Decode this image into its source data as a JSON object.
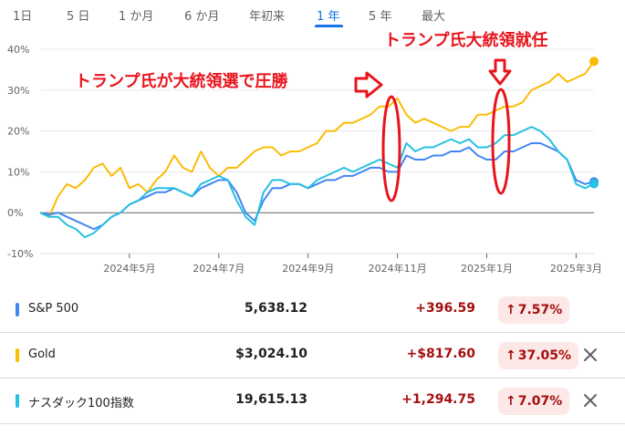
{
  "tabs": [
    "1日",
    "5 日",
    "1 か月",
    "6 か月",
    "年初来",
    "1 年",
    "5 年",
    "最大"
  ],
  "active_tab": "1 年",
  "annotations": {
    "election": "トランプ氏が大統領選で圧勝",
    "inauguration": "トランプ氏大統領就任"
  },
  "colors": {
    "sp500": "#4285f4",
    "gold": "#fbbc04",
    "nasdaq": "#24c1e0",
    "annotation": "#e8141c",
    "positive": "#a50e0e"
  },
  "chart_data": {
    "type": "line",
    "title": "",
    "xlabel": "",
    "ylabel": "",
    "x_ticks": [
      "2024年5月",
      "2024年7月",
      "2024年9月",
      "2024年11月",
      "2025年1月",
      "2025年3月"
    ],
    "x_tick_pos": [
      2.0,
      4.0,
      6.0,
      8.0,
      10.0,
      12.0
    ],
    "y_ticks": [
      "40%",
      "30%",
      "20%",
      "10%",
      "0%",
      "-10%"
    ],
    "y_tick_values": [
      40,
      30,
      20,
      10,
      0,
      -10
    ],
    "xlim": [
      0,
      12.4
    ],
    "ylim": [
      -10,
      40
    ],
    "grid": true,
    "series": [
      {
        "name": "Gold",
        "color": "gold",
        "points": [
          [
            0,
            0
          ],
          [
            0.2,
            -1
          ],
          [
            0.4,
            4
          ],
          [
            0.6,
            7
          ],
          [
            0.8,
            6
          ],
          [
            1.0,
            8
          ],
          [
            1.2,
            11
          ],
          [
            1.4,
            12
          ],
          [
            1.6,
            9
          ],
          [
            1.8,
            11
          ],
          [
            2.0,
            6
          ],
          [
            2.2,
            7
          ],
          [
            2.4,
            5
          ],
          [
            2.6,
            8
          ],
          [
            2.8,
            10
          ],
          [
            3.0,
            14
          ],
          [
            3.2,
            11
          ],
          [
            3.4,
            10
          ],
          [
            3.6,
            15
          ],
          [
            3.8,
            11
          ],
          [
            4.0,
            9
          ],
          [
            4.2,
            11
          ],
          [
            4.4,
            11
          ],
          [
            4.6,
            13
          ],
          [
            4.8,
            15
          ],
          [
            5.0,
            16
          ],
          [
            5.2,
            16
          ],
          [
            5.4,
            14
          ],
          [
            5.6,
            15
          ],
          [
            5.8,
            15
          ],
          [
            6.0,
            16
          ],
          [
            6.2,
            17
          ],
          [
            6.4,
            20
          ],
          [
            6.6,
            20
          ],
          [
            6.8,
            22
          ],
          [
            7.0,
            22
          ],
          [
            7.2,
            23
          ],
          [
            7.4,
            24
          ],
          [
            7.6,
            26
          ],
          [
            7.8,
            26
          ],
          [
            8.0,
            28
          ],
          [
            8.2,
            24
          ],
          [
            8.4,
            22
          ],
          [
            8.6,
            23
          ],
          [
            8.8,
            22
          ],
          [
            9.0,
            21
          ],
          [
            9.2,
            20
          ],
          [
            9.4,
            21
          ],
          [
            9.6,
            21
          ],
          [
            9.8,
            24
          ],
          [
            10.0,
            24
          ],
          [
            10.2,
            25
          ],
          [
            10.4,
            26
          ],
          [
            10.6,
            26
          ],
          [
            10.8,
            27
          ],
          [
            11.0,
            30
          ],
          [
            11.2,
            31
          ],
          [
            11.4,
            32
          ],
          [
            11.6,
            34
          ],
          [
            11.8,
            32
          ],
          [
            12.0,
            33
          ],
          [
            12.2,
            34
          ],
          [
            12.4,
            37.05
          ]
        ]
      },
      {
        "name": "S&P 500",
        "color": "sp500",
        "points": [
          [
            0,
            0
          ],
          [
            0.2,
            -0.5
          ],
          [
            0.4,
            0
          ],
          [
            0.6,
            -1
          ],
          [
            0.8,
            -2
          ],
          [
            1.0,
            -3
          ],
          [
            1.2,
            -4
          ],
          [
            1.4,
            -3
          ],
          [
            1.6,
            -1
          ],
          [
            1.8,
            0
          ],
          [
            2.0,
            2
          ],
          [
            2.2,
            3
          ],
          [
            2.4,
            4
          ],
          [
            2.6,
            5
          ],
          [
            2.8,
            5
          ],
          [
            3.0,
            6
          ],
          [
            3.2,
            5
          ],
          [
            3.4,
            4
          ],
          [
            3.6,
            6
          ],
          [
            3.8,
            7
          ],
          [
            4.0,
            8
          ],
          [
            4.2,
            8
          ],
          [
            4.4,
            5
          ],
          [
            4.6,
            0
          ],
          [
            4.8,
            -2
          ],
          [
            5.0,
            3
          ],
          [
            5.2,
            6
          ],
          [
            5.4,
            6
          ],
          [
            5.6,
            7
          ],
          [
            5.8,
            7
          ],
          [
            6.0,
            6
          ],
          [
            6.2,
            7
          ],
          [
            6.4,
            8
          ],
          [
            6.6,
            8
          ],
          [
            6.8,
            9
          ],
          [
            7.0,
            9
          ],
          [
            7.2,
            10
          ],
          [
            7.4,
            11
          ],
          [
            7.6,
            11
          ],
          [
            7.8,
            10
          ],
          [
            8.0,
            10
          ],
          [
            8.2,
            14
          ],
          [
            8.4,
            13
          ],
          [
            8.6,
            13
          ],
          [
            8.8,
            14
          ],
          [
            9.0,
            14
          ],
          [
            9.2,
            15
          ],
          [
            9.4,
            15
          ],
          [
            9.6,
            16
          ],
          [
            9.8,
            14
          ],
          [
            10.0,
            13
          ],
          [
            10.2,
            13
          ],
          [
            10.4,
            15
          ],
          [
            10.6,
            15
          ],
          [
            10.8,
            16
          ],
          [
            11.0,
            17
          ],
          [
            11.2,
            17
          ],
          [
            11.4,
            16
          ],
          [
            11.6,
            15
          ],
          [
            11.8,
            13
          ],
          [
            12.0,
            8
          ],
          [
            12.2,
            7
          ],
          [
            12.4,
            7.57
          ]
        ]
      },
      {
        "name": "ナスダック100指数",
        "color": "nasdaq",
        "points": [
          [
            0,
            0
          ],
          [
            0.2,
            -1
          ],
          [
            0.4,
            -1
          ],
          [
            0.6,
            -3
          ],
          [
            0.8,
            -4
          ],
          [
            1.0,
            -6
          ],
          [
            1.2,
            -5
          ],
          [
            1.4,
            -3
          ],
          [
            1.6,
            -1
          ],
          [
            1.8,
            0
          ],
          [
            2.0,
            2
          ],
          [
            2.2,
            3
          ],
          [
            2.4,
            5
          ],
          [
            2.6,
            6
          ],
          [
            2.8,
            6
          ],
          [
            3.0,
            6
          ],
          [
            3.2,
            5
          ],
          [
            3.4,
            4
          ],
          [
            3.6,
            7
          ],
          [
            3.8,
            8
          ],
          [
            4.0,
            9
          ],
          [
            4.2,
            8
          ],
          [
            4.4,
            3
          ],
          [
            4.6,
            -1
          ],
          [
            4.8,
            -3
          ],
          [
            5.0,
            5
          ],
          [
            5.2,
            8
          ],
          [
            5.4,
            8
          ],
          [
            5.6,
            7
          ],
          [
            5.8,
            7
          ],
          [
            6.0,
            6
          ],
          [
            6.2,
            8
          ],
          [
            6.4,
            9
          ],
          [
            6.6,
            10
          ],
          [
            6.8,
            11
          ],
          [
            7.0,
            10
          ],
          [
            7.2,
            11
          ],
          [
            7.4,
            12
          ],
          [
            7.6,
            13
          ],
          [
            7.8,
            12
          ],
          [
            8.0,
            11
          ],
          [
            8.2,
            17
          ],
          [
            8.4,
            15
          ],
          [
            8.6,
            16
          ],
          [
            8.8,
            16
          ],
          [
            9.0,
            17
          ],
          [
            9.2,
            18
          ],
          [
            9.4,
            17
          ],
          [
            9.6,
            18
          ],
          [
            9.8,
            16
          ],
          [
            10.0,
            16
          ],
          [
            10.2,
            17
          ],
          [
            10.4,
            19
          ],
          [
            10.6,
            19
          ],
          [
            10.8,
            20
          ],
          [
            11.0,
            21
          ],
          [
            11.2,
            20
          ],
          [
            11.4,
            18
          ],
          [
            11.6,
            15
          ],
          [
            11.8,
            13
          ],
          [
            12.0,
            7
          ],
          [
            12.2,
            6
          ],
          [
            12.4,
            7.07
          ]
        ]
      }
    ]
  },
  "rows": [
    {
      "name": "S&P 500",
      "color": "sp500",
      "price": "5,638.12",
      "change": "+396.59",
      "percent": "7.57%",
      "arrow": "↑",
      "removable": false
    },
    {
      "name": "Gold",
      "color": "gold",
      "price": "$3,024.10",
      "change": "+$817.60",
      "percent": "37.05%",
      "arrow": "↑",
      "removable": true
    },
    {
      "name": "ナスダック100指数",
      "color": "nasdaq",
      "price": "19,615.13",
      "change": "+1,294.75",
      "percent": "7.07%",
      "arrow": "↑",
      "removable": true
    }
  ]
}
